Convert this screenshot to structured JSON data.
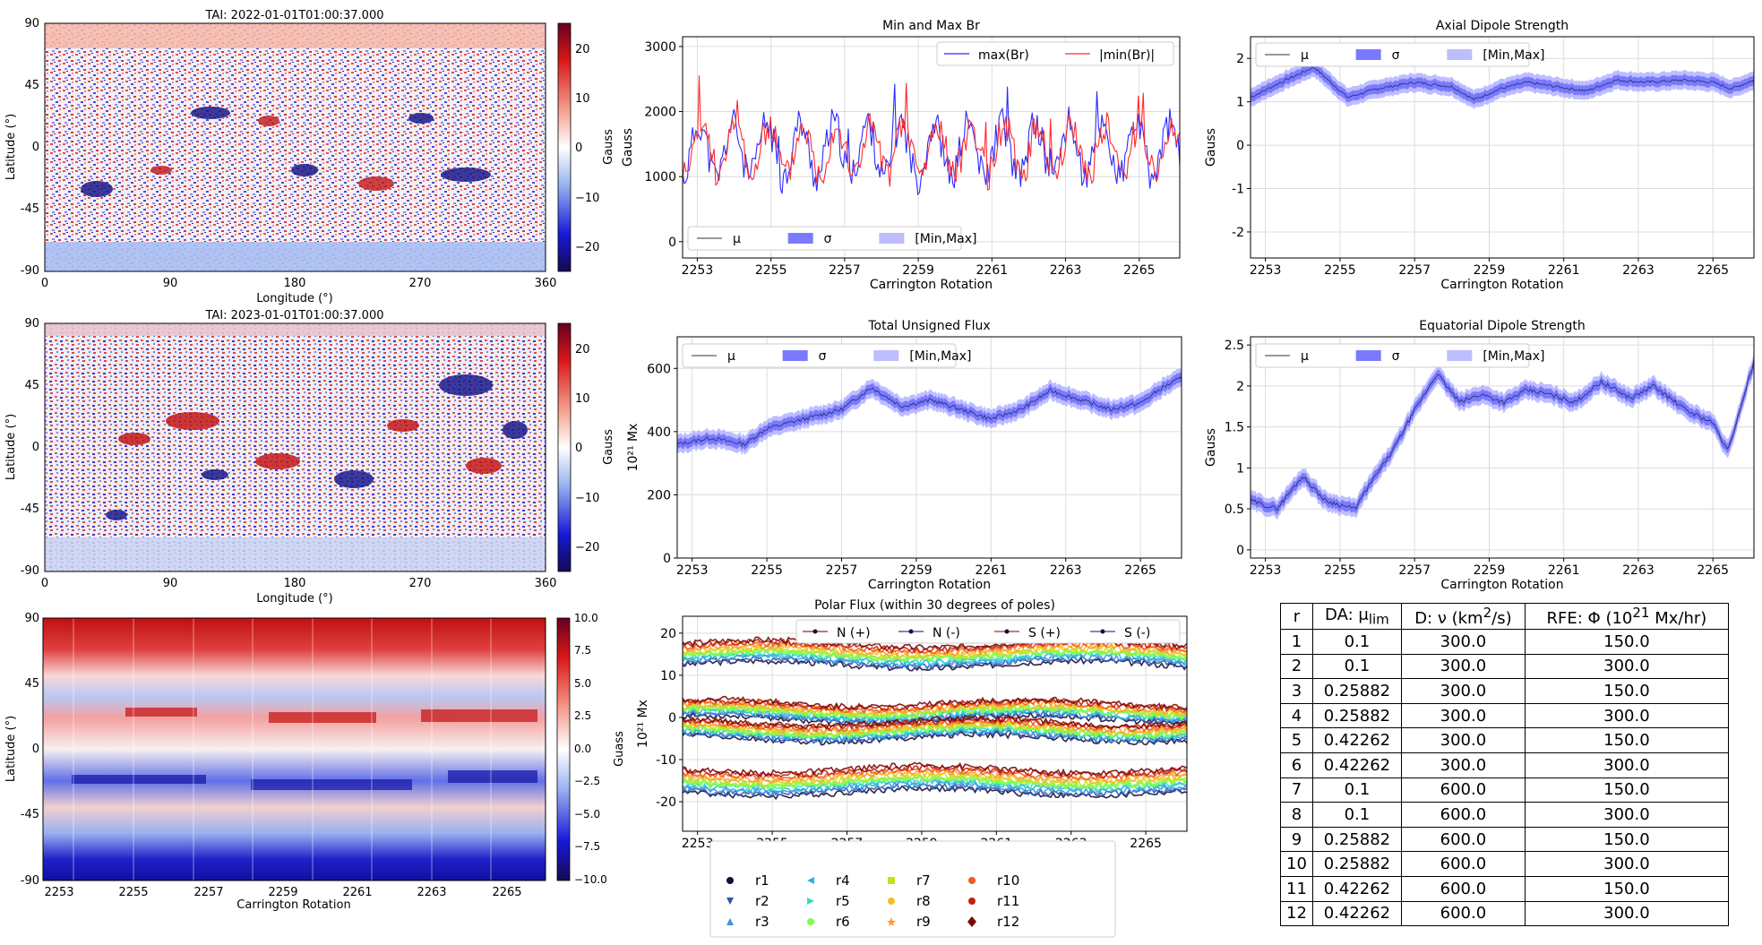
{
  "colors": {
    "blue": "#2b2bff",
    "red": "#ff2b2b",
    "band_sigma": "#7a7aff",
    "band_minmax": "#bdbdff",
    "grid": "#dcdcdc"
  },
  "maps": [
    {
      "title": "TAI: 2022-01-01T01:00:37.000",
      "xlabel": "Longitude ($^\\circ$)",
      "ylabel": "Latitude ($^\\circ$)",
      "xticks": [
        "0",
        "90",
        "180",
        "270",
        "360"
      ],
      "yticks": [
        "90",
        "45",
        "0",
        "-45",
        "-90"
      ],
      "cbar_label": "Gauss",
      "cbar_ticks": [
        "20",
        "10",
        "0",
        "−10",
        "−20"
      ],
      "cbar_range": [
        -25,
        25
      ]
    },
    {
      "title": "TAI: 2023-01-01T01:00:37.000",
      "xlabel": "Longitude ($^\\circ$)",
      "ylabel": "Latitude ($^\\circ$)",
      "xticks": [
        "0",
        "90",
        "180",
        "270",
        "360"
      ],
      "yticks": [
        "90",
        "45",
        "0",
        "-45",
        "-90"
      ],
      "cbar_label": "Gauss",
      "cbar_ticks": [
        "20",
        "10",
        "0",
        "−10",
        "−20"
      ],
      "cbar_range": [
        -25,
        25
      ]
    },
    {
      "title": "",
      "xlabel": "Carrington Rotation",
      "ylabel": "Latitude ($^\\circ$)",
      "xticks": [
        "2253",
        "2255",
        "2257",
        "2259",
        "2261",
        "2263",
        "2265"
      ],
      "yticks": [
        "90",
        "45",
        "0",
        "-45",
        "-90"
      ],
      "cbar_label": "Guass",
      "cbar_ticks": [
        "10.0",
        "7.5",
        "5.0",
        "2.5",
        "0.0",
        "−2.5",
        "−5.0",
        "−7.5",
        "−10.0"
      ],
      "cbar_range": [
        -10,
        10
      ]
    }
  ],
  "chart_data": [
    {
      "type": "line",
      "title": "Min and Max Br",
      "xlabel": "Carrington Rotation",
      "ylabel": "Gauss",
      "xlim": [
        2252.6,
        2266.1
      ],
      "ylim": [
        -250,
        3150
      ],
      "xticks": [
        2253,
        2255,
        2257,
        2259,
        2261,
        2263,
        2265
      ],
      "yticks": [
        0,
        1000,
        2000,
        3000
      ],
      "series": [
        {
          "name": "max(Br)",
          "color": "#2b2bff",
          "mean": 1400,
          "amp": 420,
          "noise": 260,
          "seed": 11
        },
        {
          "name": "|min(Br)|",
          "color": "#ff2b2b",
          "mean": 1420,
          "amp": 380,
          "noise": 250,
          "seed": 23
        }
      ],
      "legend_top": [
        "max(Br)",
        "|min(Br)|"
      ],
      "legend_bottom": [
        "$\\mu$",
        "$\\sigma$",
        "[Min,Max]"
      ]
    },
    {
      "type": "area",
      "title": "Axial Dipole Strength",
      "xlabel": "Carrington Rotation",
      "ylabel": "Gauss",
      "xlim": [
        2252.6,
        2266.1
      ],
      "ylim": [
        -2.6,
        2.5
      ],
      "xticks": [
        2253,
        2255,
        2257,
        2259,
        2261,
        2263,
        2265
      ],
      "yticks": [
        2,
        1,
        0,
        -1,
        -2
      ],
      "knots": [
        [
          2252.6,
          1.1
        ],
        [
          2253.3,
          1.4
        ],
        [
          2254.3,
          1.8
        ],
        [
          2255.2,
          1.1
        ],
        [
          2256,
          1.3
        ],
        [
          2257,
          1.45
        ],
        [
          2258,
          1.35
        ],
        [
          2258.6,
          1.05
        ],
        [
          2259.3,
          1.3
        ],
        [
          2260,
          1.45
        ],
        [
          2260.8,
          1.35
        ],
        [
          2261.6,
          1.25
        ],
        [
          2262.4,
          1.5
        ],
        [
          2263.2,
          1.45
        ],
        [
          2264.2,
          1.5
        ],
        [
          2265,
          1.45
        ],
        [
          2265.5,
          1.3
        ],
        [
          2266.1,
          1.5
        ]
      ],
      "legend": [
        "$\\mu$",
        "$\\sigma$",
        "[Min,Max]"
      ]
    },
    {
      "type": "area",
      "title": "Total Unsigned Flux",
      "xlabel": "Carrington Rotation",
      "ylabel": "10$^{21}$ Mx",
      "xlim": [
        2252.6,
        2266.1
      ],
      "ylim": [
        0,
        700
      ],
      "xticks": [
        2253,
        2255,
        2257,
        2259,
        2261,
        2263,
        2265
      ],
      "yticks": [
        0,
        200,
        400,
        600
      ],
      "knots": [
        [
          2252.6,
          360
        ],
        [
          2253.5,
          380
        ],
        [
          2254.4,
          360
        ],
        [
          2255,
          410
        ],
        [
          2256,
          440
        ],
        [
          2257,
          470
        ],
        [
          2257.8,
          540
        ],
        [
          2258.6,
          480
        ],
        [
          2259.4,
          500
        ],
        [
          2260.2,
          470
        ],
        [
          2261,
          440
        ],
        [
          2261.8,
          470
        ],
        [
          2262.6,
          530
        ],
        [
          2263.4,
          500
        ],
        [
          2264.2,
          470
        ],
        [
          2265,
          490
        ],
        [
          2265.6,
          540
        ],
        [
          2266.1,
          570
        ]
      ],
      "legend": [
        "$\\mu$",
        "$\\sigma$",
        "[Min,Max]"
      ]
    },
    {
      "type": "area",
      "title": "Equatorial Dipole Strength",
      "xlabel": "Carrington Rotation",
      "ylabel": "Gauss",
      "xlim": [
        2252.6,
        2266.1
      ],
      "ylim": [
        -0.1,
        2.6
      ],
      "xticks": [
        2253,
        2255,
        2257,
        2259,
        2261,
        2263,
        2265
      ],
      "yticks": [
        0.0,
        0.5,
        1.0,
        1.5,
        2.0,
        2.5
      ],
      "knots": [
        [
          2252.6,
          0.6
        ],
        [
          2253.3,
          0.5
        ],
        [
          2254,
          0.9
        ],
        [
          2254.6,
          0.6
        ],
        [
          2255.4,
          0.5
        ],
        [
          2255.8,
          0.8
        ],
        [
          2256.4,
          1.2
        ],
        [
          2257,
          1.7
        ],
        [
          2257.6,
          2.15
        ],
        [
          2258.2,
          1.8
        ],
        [
          2258.8,
          1.9
        ],
        [
          2259.4,
          1.8
        ],
        [
          2260,
          1.95
        ],
        [
          2260.6,
          1.9
        ],
        [
          2261.3,
          1.8
        ],
        [
          2262,
          2.05
        ],
        [
          2262.8,
          1.85
        ],
        [
          2263.4,
          2.0
        ],
        [
          2264.3,
          1.7
        ],
        [
          2265,
          1.55
        ],
        [
          2265.4,
          1.2
        ],
        [
          2266.1,
          2.3
        ]
      ],
      "legend": [
        "$\\mu$",
        "$\\sigma$",
        "[Min,Max]"
      ]
    },
    {
      "type": "line",
      "title": "Polar Flux (within 30 degrees of poles)",
      "xlabel": "Carrington Rotation",
      "ylabel": "10$^{21}$ Mx",
      "xlim": [
        2252.6,
        2266.1
      ],
      "ylim": [
        -27,
        24
      ],
      "xticks": [
        2253,
        2255,
        2257,
        2259,
        2261,
        2263,
        2265
      ],
      "yticks": [
        20,
        10,
        0,
        -10,
        -20
      ],
      "groups": [
        {
          "name": "N (+)",
          "mean": 15
        },
        {
          "name": "N (-)",
          "mean": 1.5
        },
        {
          "name": "S (+)",
          "mean": -3
        },
        {
          "name": "S (-)",
          "mean": -15
        }
      ],
      "legend": [
        "N (+)",
        "N (-)",
        "S (+)",
        "S (-)"
      ],
      "runs": [
        {
          "name": "r1",
          "color": "#1a0b3b",
          "marker": "circle"
        },
        {
          "name": "r2",
          "color": "#2e5aa8",
          "marker": "triangle-down"
        },
        {
          "name": "r3",
          "color": "#3f8fe8",
          "marker": "triangle-up"
        },
        {
          "name": "r4",
          "color": "#2ab3e0",
          "marker": "triangle-left"
        },
        {
          "name": "r5",
          "color": "#2ee0c4",
          "marker": "triangle-right"
        },
        {
          "name": "r6",
          "color": "#7cff4a",
          "marker": "octagon"
        },
        {
          "name": "r7",
          "color": "#c8e020",
          "marker": "square"
        },
        {
          "name": "r8",
          "color": "#f0c020",
          "marker": "pentagon"
        },
        {
          "name": "r9",
          "color": "#ff9a30",
          "marker": "star"
        },
        {
          "name": "r10",
          "color": "#f05a20",
          "marker": "hexagon"
        },
        {
          "name": "r11",
          "color": "#c02010",
          "marker": "hexagon2"
        },
        {
          "name": "r12",
          "color": "#7a0a08",
          "marker": "diamond"
        }
      ]
    },
    {
      "type": "table",
      "columns": [
        "r",
        "DA: $\\mu_{lim}$",
        "D: $\\nu$ (km$^2$/s)",
        "RFE: $\\Phi$ (10$^{21}$ Mx/hr)"
      ],
      "rows": [
        [
          "1",
          "0.1",
          "300.0",
          "150.0"
        ],
        [
          "2",
          "0.1",
          "300.0",
          "300.0"
        ],
        [
          "3",
          "0.25882",
          "300.0",
          "150.0"
        ],
        [
          "4",
          "0.25882",
          "300.0",
          "300.0"
        ],
        [
          "5",
          "0.42262",
          "300.0",
          "150.0"
        ],
        [
          "6",
          "0.42262",
          "300.0",
          "300.0"
        ],
        [
          "7",
          "0.1",
          "600.0",
          "150.0"
        ],
        [
          "8",
          "0.1",
          "600.0",
          "300.0"
        ],
        [
          "9",
          "0.25882",
          "600.0",
          "150.0"
        ],
        [
          "10",
          "0.25882",
          "600.0",
          "300.0"
        ],
        [
          "11",
          "0.42262",
          "600.0",
          "150.0"
        ],
        [
          "12",
          "0.42262",
          "600.0",
          "300.0"
        ]
      ]
    }
  ],
  "table_header": {
    "r": "r",
    "da_prefix": "DA: μ",
    "da_sub": "lim",
    "d_prefix": "D: ν (km",
    "d_sup": "2",
    "d_suffix": "/s)",
    "rfe_prefix": "RFE: Φ (10",
    "rfe_sup": "21",
    "rfe_suffix": " Mx/hr)"
  }
}
